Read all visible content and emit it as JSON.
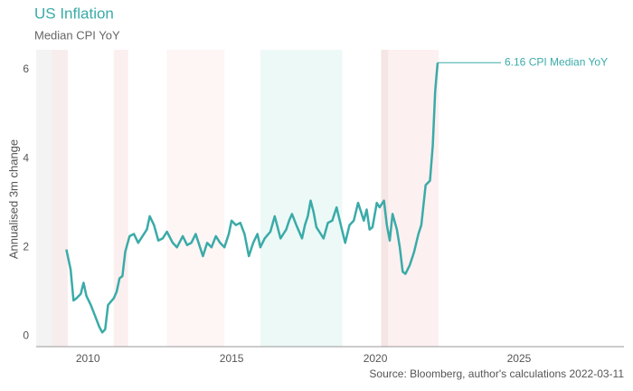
{
  "chart_data": {
    "type": "line",
    "title": "US Inflation",
    "subtitle": "Median CPI YoY",
    "y_label": "Annualised 3m change",
    "source": "Source: Bloomberg, author's calculations 2022-03-11",
    "annotation": "6.16 CPI Median YoY",
    "color": "#3aaba8",
    "x": [
      2009.25,
      2009.4,
      2009.5,
      2009.6,
      2009.75,
      2009.85,
      2009.95,
      2010.1,
      2010.25,
      2010.4,
      2010.5,
      2010.6,
      2010.7,
      2010.9,
      2011.0,
      2011.1,
      2011.2,
      2011.3,
      2011.45,
      2011.6,
      2011.75,
      2011.9,
      2012.05,
      2012.15,
      2012.3,
      2012.45,
      2012.6,
      2012.75,
      2012.95,
      2013.1,
      2013.3,
      2013.45,
      2013.6,
      2013.75,
      2013.9,
      2014.0,
      2014.15,
      2014.3,
      2014.45,
      2014.6,
      2014.75,
      2014.9,
      2015.0,
      2015.15,
      2015.3,
      2015.45,
      2015.6,
      2015.75,
      2015.9,
      2016.0,
      2016.15,
      2016.35,
      2016.5,
      2016.7,
      2016.9,
      2017.0,
      2017.1,
      2017.25,
      2017.45,
      2017.55,
      2017.65,
      2017.75,
      2017.85,
      2017.95,
      2018.05,
      2018.2,
      2018.35,
      2018.5,
      2018.65,
      2018.8,
      2018.95,
      2019.1,
      2019.25,
      2019.4,
      2019.5,
      2019.6,
      2019.7,
      2019.8,
      2019.9,
      2020.05,
      2020.15,
      2020.3,
      2020.4,
      2020.5,
      2020.6,
      2020.75,
      2020.85,
      2020.95,
      2021.05,
      2021.2,
      2021.35,
      2021.5,
      2021.6,
      2021.75,
      2021.9,
      2022.0,
      2022.08,
      2022.12,
      2022.17
    ],
    "values": [
      1.95,
      1.5,
      0.8,
      0.85,
      0.95,
      1.2,
      0.9,
      0.7,
      0.45,
      0.2,
      0.08,
      0.15,
      0.7,
      0.85,
      1.0,
      1.3,
      1.35,
      1.9,
      2.25,
      2.3,
      2.1,
      2.25,
      2.4,
      2.7,
      2.5,
      2.15,
      2.2,
      2.35,
      2.1,
      2.0,
      2.25,
      2.05,
      2.1,
      2.3,
      2.0,
      1.8,
      2.1,
      2.0,
      2.25,
      2.1,
      2.0,
      2.3,
      2.6,
      2.5,
      2.55,
      2.3,
      1.8,
      2.1,
      2.3,
      2.0,
      2.2,
      2.35,
      2.7,
      2.2,
      2.4,
      2.6,
      2.75,
      2.5,
      2.2,
      2.5,
      2.7,
      3.05,
      2.8,
      2.45,
      2.35,
      2.2,
      2.55,
      2.6,
      2.9,
      2.5,
      2.1,
      2.5,
      2.6,
      3.0,
      2.8,
      2.6,
      2.85,
      2.4,
      2.45,
      3.0,
      2.9,
      3.05,
      2.5,
      2.15,
      2.75,
      2.4,
      2.0,
      1.45,
      1.4,
      1.6,
      1.9,
      2.3,
      2.5,
      3.4,
      3.5,
      4.3,
      5.5,
      5.8,
      6.16
    ],
    "shaded_regions": [
      {
        "x": [
          2008.2,
          2008.75
        ],
        "color": "#f3f3f3"
      },
      {
        "x": [
          2008.75,
          2009.3
        ],
        "color": "#f8eded"
      },
      {
        "x": [
          2010.9,
          2011.4
        ],
        "color": "#fcefef"
      },
      {
        "x": [
          2012.75,
          2014.75
        ],
        "color": "#fef5f5"
      },
      {
        "x": [
          2016.0,
          2018.85
        ],
        "color": "#edf9f7"
      },
      {
        "x": [
          2020.2,
          2020.45
        ],
        "color": "#f5e5e5"
      },
      {
        "x": [
          2020.45,
          2022.2
        ],
        "color": "#fdf0f0"
      }
    ],
    "xlim": [
      2008.2,
      2028.65
    ],
    "xticks": [
      2010,
      2015,
      2020,
      2025
    ],
    "ylim": [
      -0.24,
      6.45
    ],
    "yticks": [
      0,
      2,
      4,
      6
    ],
    "grid": false
  }
}
